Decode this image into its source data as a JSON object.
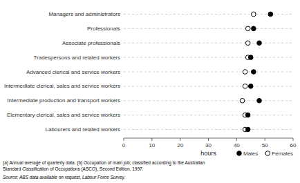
{
  "chart_data": {
    "type": "dot",
    "orientation": "horizontal",
    "categories": [
      "Managers and administrators",
      "Professionals",
      "Associate professionals",
      "Tradespersons and related workers",
      "Advanced clerical and service workers",
      "Intermediate clerical, sales and service workers",
      "Intermediate production and transport workers",
      "Elementary clerical, sales and service workers",
      "Labourers and related workers"
    ],
    "series": [
      {
        "name": "Males",
        "color": "#000000",
        "marker": "circle",
        "values": [
          52,
          46,
          48,
          45,
          46,
          45,
          48,
          44,
          44
        ]
      },
      {
        "name": "Females",
        "color": "#ffffff",
        "marker": "circle",
        "values": [
          46,
          44,
          44,
          44,
          43,
          43,
          42,
          43,
          43
        ]
      }
    ],
    "xlim": [
      0,
      60
    ],
    "xticks": [
      0,
      10,
      20,
      30,
      40,
      50,
      60
    ],
    "xlabel": "hours",
    "grid": true,
    "legend": "lower right",
    "footnotes": [
      "(a) Annual average of quarterly data.  (b) Occupation of main job; classified according to the Australian",
      "Standard Classification of Occupations (ASCO), Second Edition, 1997."
    ],
    "source": "Source: ABS data available on request, Labour Force Survey."
  }
}
